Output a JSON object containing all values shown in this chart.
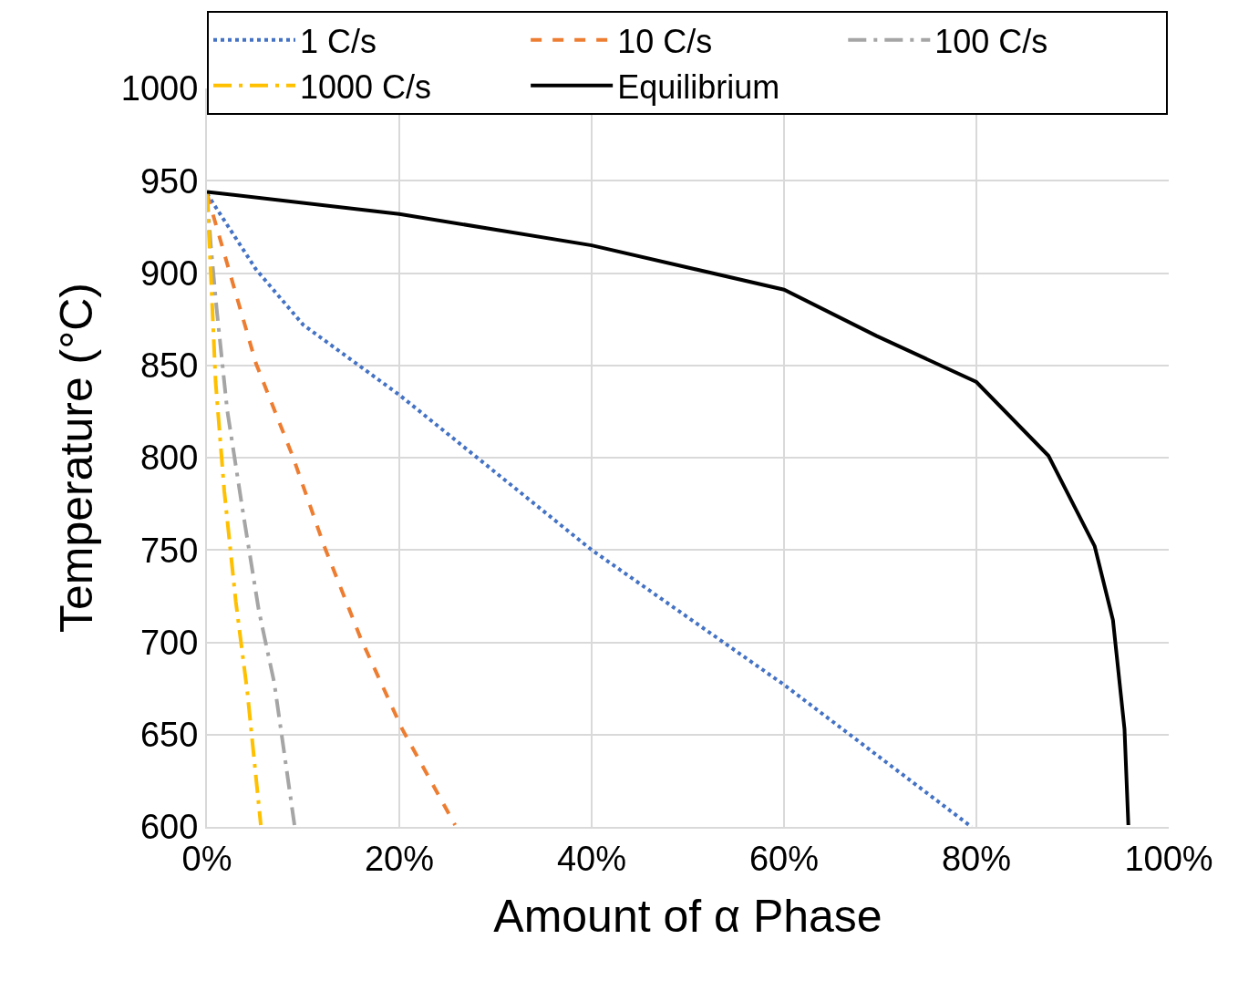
{
  "chart_data": {
    "type": "line",
    "xlabel": "Amount of α Phase",
    "ylabel": "Temperature (°C)",
    "xlim": [
      0,
      100
    ],
    "ylim": [
      600,
      1000
    ],
    "xticks": [
      {
        "value": 0,
        "label": "0%"
      },
      {
        "value": 20,
        "label": "20%"
      },
      {
        "value": 40,
        "label": "40%"
      },
      {
        "value": 60,
        "label": "60%"
      },
      {
        "value": 80,
        "label": "80%"
      },
      {
        "value": 100,
        "label": "100%"
      }
    ],
    "yticks": [
      600,
      650,
      700,
      750,
      800,
      850,
      900,
      950,
      1000
    ],
    "grid": true,
    "legend": "top",
    "marker": "none",
    "series": [
      {
        "name": "1 C/s",
        "color": "#4472c4",
        "line_style": "dotted",
        "x": [
          0,
          5.1,
          10,
          20,
          40,
          60,
          79.5
        ],
        "values": [
          943,
          902,
          872,
          834,
          750,
          677,
          600
        ]
      },
      {
        "name": "10 C/s",
        "color": "#ed7d31",
        "line_style": "dashed",
        "x": [
          0,
          1,
          5.1,
          8.9,
          12.2,
          16,
          20.3,
          25.8
        ],
        "values": [
          943,
          925,
          851,
          801,
          752,
          702,
          653,
          601
        ]
      },
      {
        "name": "100 C/s",
        "color": "#a5a5a5",
        "line_style": "dashdot",
        "x": [
          0,
          0.4,
          1,
          2.1,
          3.7,
          5.4,
          7,
          9.1
        ],
        "values": [
          943,
          915,
          881,
          826,
          772,
          717,
          678,
          601
        ]
      },
      {
        "name": "1000 C/s",
        "color": "#ffc000",
        "line_style": "dashdot",
        "x": [
          0,
          0.4,
          0.9,
          1.8,
          3,
          4.2,
          5.6
        ],
        "values": [
          943,
          900,
          841,
          782,
          722,
          673,
          601
        ]
      },
      {
        "name": "Equilibrium",
        "color": "#000000",
        "line_style": "solid",
        "x": [
          0,
          20,
          40,
          60,
          69.6,
          80,
          87.5,
          92.3,
          94.2,
          95.4,
          95.8
        ],
        "values": [
          944,
          932,
          915,
          891,
          866,
          841,
          801,
          752,
          712,
          653,
          601
        ]
      }
    ]
  }
}
